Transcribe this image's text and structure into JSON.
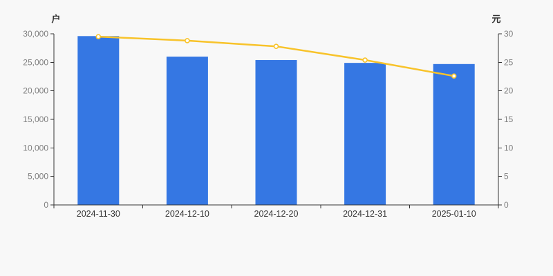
{
  "chart": {
    "left_axis": {
      "title": "户",
      "tick_labels": [
        "0",
        "5,000",
        "10,000",
        "15,000",
        "20,000",
        "25,000",
        "30,000"
      ],
      "min": 0,
      "max": 30000
    },
    "right_axis": {
      "title": "元",
      "tick_labels": [
        "0",
        "5",
        "10",
        "15",
        "20",
        "25",
        "30"
      ],
      "min": 0,
      "max": 30
    },
    "x_axis": {
      "categories": [
        "2024-11-30",
        "2024-12-10",
        "2024-12-20",
        "2024-12-31",
        "2025-01-10"
      ]
    }
  },
  "chart_data": {
    "type": "bar",
    "categories": [
      "2024-11-30",
      "2024-12-10",
      "2024-12-20",
      "2024-12-31",
      "2025-01-10"
    ],
    "series": [
      {
        "name": "bar-series",
        "type": "bar",
        "y_axis": "left",
        "unit": "户",
        "values": [
          29600,
          26000,
          25400,
          24900,
          24700
        ]
      },
      {
        "name": "line-series",
        "type": "line",
        "y_axis": "right",
        "unit": "元",
        "values": [
          29.5,
          28.8,
          27.8,
          25.4,
          22.6
        ]
      }
    ],
    "title": "",
    "xlabel": "",
    "left_ylabel": "户",
    "right_ylabel": "元",
    "left_ylim": [
      0,
      30000
    ],
    "right_ylim": [
      0,
      30
    ],
    "grid": false,
    "legend_position": "none"
  },
  "colors": {
    "background": "#f8f8f8",
    "bar_fill": "#3577e3",
    "line_stroke": "#f8c32a",
    "marker_fill": "#ffffff",
    "axis_line": "#333333",
    "y_tick_label": "#808080",
    "x_tick_label": "#333333",
    "axis_title": "#333333"
  }
}
